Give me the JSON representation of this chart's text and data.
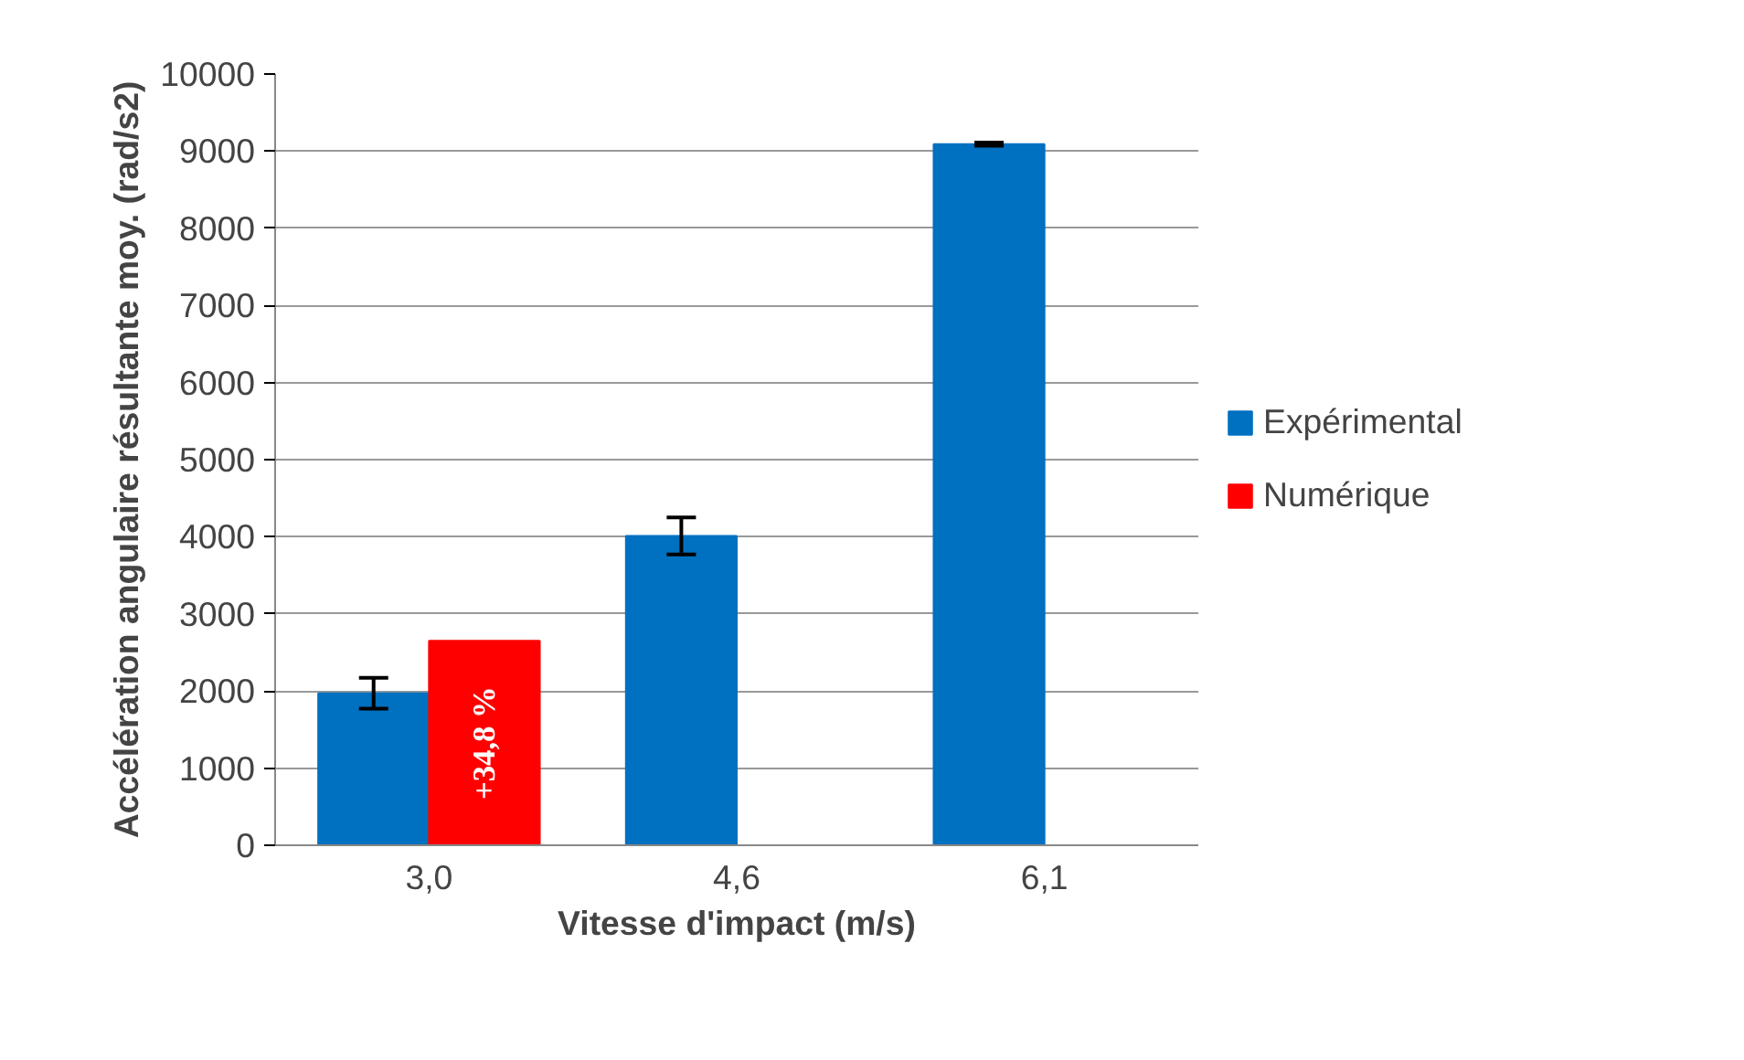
{
  "chart_data": {
    "type": "bar",
    "xlabel": "Vitesse d'impact (m/s)",
    "ylabel": "Accélération angulaire résultante moy. (rad/s2)",
    "categories": [
      "3,0",
      "4,6",
      "6,1"
    ],
    "series": [
      {
        "name": "Expérimental",
        "color": "#0070c0",
        "values": [
          1970,
          4010,
          9090
        ],
        "errors": [
          200,
          240,
          20
        ]
      },
      {
        "name": "Numérique",
        "color": "#ff0000",
        "values": [
          2650,
          null,
          null
        ]
      }
    ],
    "annotations": [
      {
        "text": "+34,8 %",
        "x": "3,0",
        "y": 1325
      }
    ],
    "ylim": [
      0,
      10000
    ],
    "yticks": [
      0,
      1000,
      2000,
      3000,
      4000,
      5000,
      6000,
      7000,
      8000,
      9000,
      10000
    ],
    "grid": "y",
    "legend": "right"
  }
}
